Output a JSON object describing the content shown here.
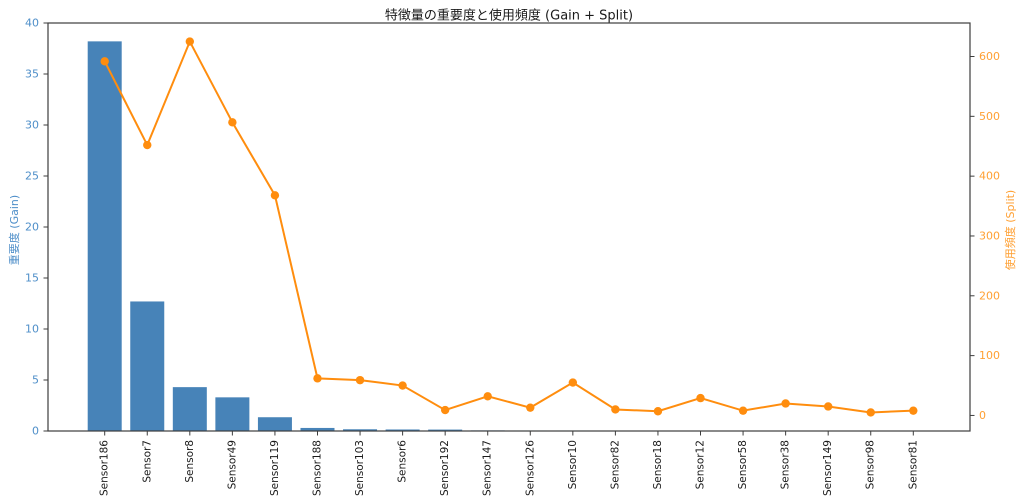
{
  "chart_data": {
    "type": "bar+line",
    "title": "特徴量の重要度と使用頻度 (Gain + Split)",
    "ylabel_left": "重要度 (Gain)",
    "ylabel_right": "使用頻度 (Split)",
    "grid": false,
    "legend": "none",
    "categories": [
      "Sensor186",
      "Sensor7",
      "Sensor8",
      "Sensor49",
      "Sensor119",
      "Sensor188",
      "Sensor103",
      "Sensor6",
      "Sensor192",
      "Sensor147",
      "Sensor126",
      "Sensor10",
      "Sensor82",
      "Sensor18",
      "Sensor12",
      "Sensor58",
      "Sensor38",
      "Sensor149",
      "Sensor98",
      "Sensor81"
    ],
    "series": [
      {
        "name": "重要度 (Gain)",
        "type": "bar",
        "axis": "left",
        "color": "#4783b8",
        "values": [
          38.2,
          12.7,
          4.3,
          3.3,
          1.35,
          0.3,
          0.17,
          0.15,
          0.14,
          0.06,
          0.05,
          0.05,
          0.04,
          0.04,
          0.03,
          0.03,
          0.02,
          0.02,
          0.02,
          0.01
        ]
      },
      {
        "name": "使用頻度 (Split)",
        "type": "line",
        "axis": "right",
        "color": "#ff8d0e",
        "marker": "circle",
        "values": [
          592,
          452,
          625,
          490,
          368,
          62,
          59,
          50,
          9,
          32,
          13,
          55,
          10,
          7,
          29,
          8,
          20,
          15,
          5,
          8
        ]
      }
    ],
    "y_left": {
      "min": 0,
      "max": 40,
      "ticks": [
        0,
        5,
        10,
        15,
        20,
        25,
        30,
        35,
        40
      ],
      "tick_color": "#4f8fc9"
    },
    "y_right": {
      "min": -26,
      "max": 656,
      "ticks": [
        0,
        100,
        200,
        300,
        400,
        500,
        600
      ],
      "tick_color": "#ffa033"
    },
    "axis_line_color": "#3d3d3d",
    "background": "#ffffff"
  }
}
